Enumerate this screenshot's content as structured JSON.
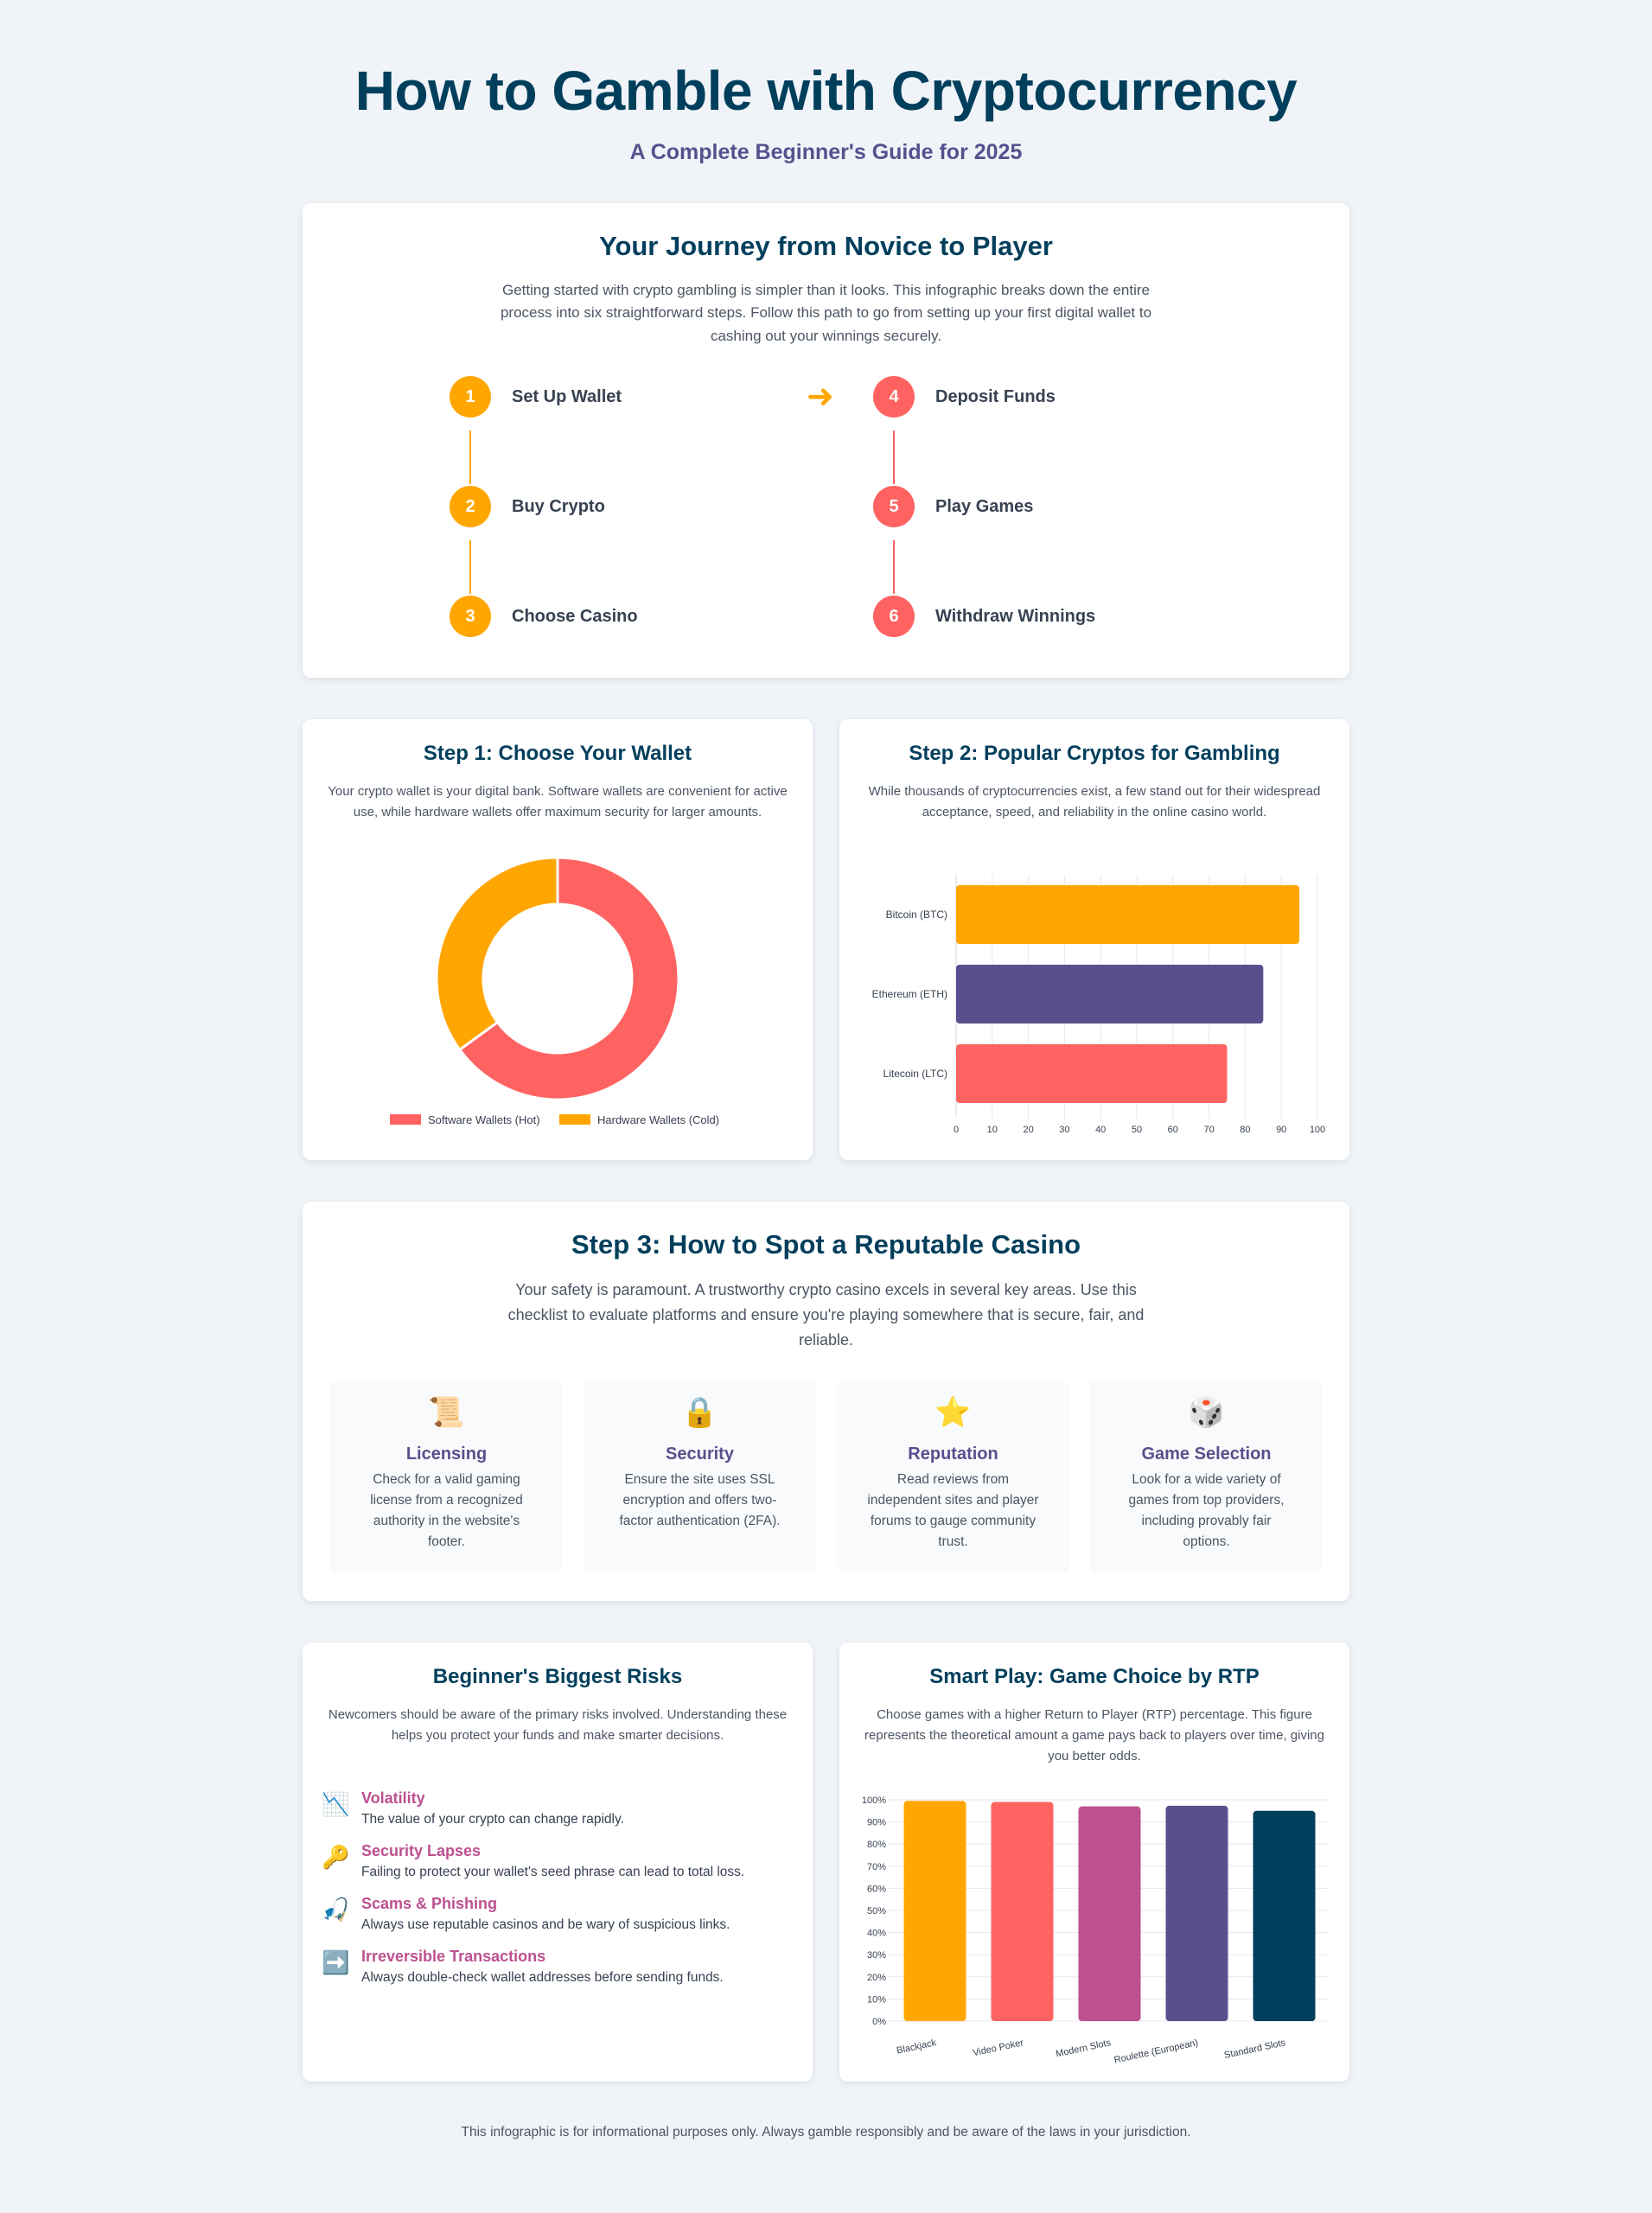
{
  "header": {
    "title": "How to Gamble with Cryptocurrency",
    "subtitle": "A Complete Beginner's Guide for 2025"
  },
  "journey": {
    "title": "Your Journey from Novice to Player",
    "description": "Getting started with crypto gambling is simpler than it looks. This infographic breaks down the entire process into six straightforward steps. Follow this path to go from setting up your first digital wallet to cashing out your winnings securely.",
    "steps": [
      {
        "number": "1",
        "label": "Set Up Wallet"
      },
      {
        "number": "2",
        "label": "Buy Crypto"
      },
      {
        "number": "3",
        "label": "Choose Casino"
      },
      {
        "number": "4",
        "label": "Deposit Funds"
      },
      {
        "number": "5",
        "label": "Play Games"
      },
      {
        "number": "6",
        "label": "Withdraw Winnings"
      }
    ],
    "colors": {
      "first_column": "#ffa600",
      "second_column": "#ff6361"
    },
    "arrow_icon": "arrow-right-icon"
  },
  "wallet": {
    "title": "Step 1: Choose Your Wallet",
    "description": "Your crypto wallet is your digital bank. Software wallets are convenient for active use, while hardware wallets offer maximum security for larger amounts."
  },
  "cryptos": {
    "title": "Step 2: Popular Cryptos for Gambling",
    "description": "While thousands of cryptocurrencies exist, a few stand out for their widespread acceptance, speed, and reliability in the online casino world."
  },
  "casino": {
    "title": "Step 3: How to Spot a Reputable Casino",
    "description": "Your safety is paramount. A trustworthy crypto casino excels in several key areas. Use this checklist to evaluate platforms and ensure you're playing somewhere that is secure, fair, and reliable.",
    "criteria": [
      {
        "icon": "📜",
        "icon_name": "scroll-icon",
        "title": "Licensing",
        "text": "Check for a valid gaming license from a recognized authority in the website's footer."
      },
      {
        "icon": "🔒",
        "icon_name": "lock-icon",
        "title": "Security",
        "text": "Ensure the site uses SSL encryption and offers two-factor authentication (2FA)."
      },
      {
        "icon": "⭐",
        "icon_name": "star-icon",
        "title": "Reputation",
        "text": "Read reviews from independent sites and player forums to gauge community trust."
      },
      {
        "icon": "🎲",
        "icon_name": "dice-icon",
        "title": "Game Selection",
        "text": "Look for a wide variety of games from top providers, including provably fair options."
      }
    ]
  },
  "risks": {
    "title": "Beginner's Biggest Risks",
    "description": "Newcomers should be aware of the primary risks involved. Understanding these helps you protect your funds and make smarter decisions.",
    "items": [
      {
        "icon": "📉",
        "icon_name": "chart-down-icon",
        "title": "Volatility",
        "text": "The value of your crypto can change rapidly."
      },
      {
        "icon": "🔑",
        "icon_name": "key-icon",
        "title": "Security Lapses",
        "text": "Failing to protect your wallet's seed phrase can lead to total loss."
      },
      {
        "icon": "🎣",
        "icon_name": "fishing-icon",
        "title": "Scams & Phishing",
        "text": "Always use reputable casinos and be wary of suspicious links."
      },
      {
        "icon": "➡️",
        "icon_name": "arrow-right-icon",
        "title": "Irreversible Transactions",
        "text": "Always double-check wallet addresses before sending funds."
      }
    ]
  },
  "rtp": {
    "title": "Smart Play: Game Choice by RTP",
    "description": "Choose games with a higher Return to Player (RTP) percentage. This figure represents the theoretical amount a game pays back to players over time, giving you better odds."
  },
  "footer": {
    "text": "This infographic is for informational purposes only. Always gamble responsibly and be aware of the laws in your jurisdiction."
  },
  "chart_data": [
    {
      "type": "pie",
      "variant": "doughnut",
      "categories": [
        "Software Wallets (Hot)",
        "Hardware Wallets (Cold)"
      ],
      "values": [
        65,
        35
      ],
      "colors": [
        "#ff6361",
        "#ffa600"
      ],
      "legend": "bottom"
    },
    {
      "type": "bar",
      "orientation": "horizontal",
      "categories": [
        "Bitcoin (BTC)",
        "Ethereum (ETH)",
        "Litecoin (LTC)"
      ],
      "values": [
        95,
        85,
        75
      ],
      "colors": [
        "#ffa600",
        "#58508d",
        "#ff6361"
      ],
      "xlim": [
        0,
        100
      ],
      "ticks": [
        0,
        10,
        20,
        30,
        40,
        50,
        60,
        70,
        80,
        90,
        100
      ],
      "grid": true
    },
    {
      "type": "bar",
      "categories": [
        "Blackjack",
        "Video Poker",
        "Modern Slots",
        "Roulette (European)",
        "Standard Slots"
      ],
      "values": [
        99.5,
        99,
        97,
        97.3,
        95
      ],
      "colors": [
        "#ffa600",
        "#ff6361",
        "#bc5090",
        "#58508d",
        "#003f5c"
      ],
      "ylim": [
        0,
        100
      ],
      "ticks": [
        "0%",
        "10%",
        "20%",
        "30%",
        "40%",
        "50%",
        "60%",
        "70%",
        "80%",
        "90%",
        "100%"
      ],
      "grid": true
    }
  ]
}
